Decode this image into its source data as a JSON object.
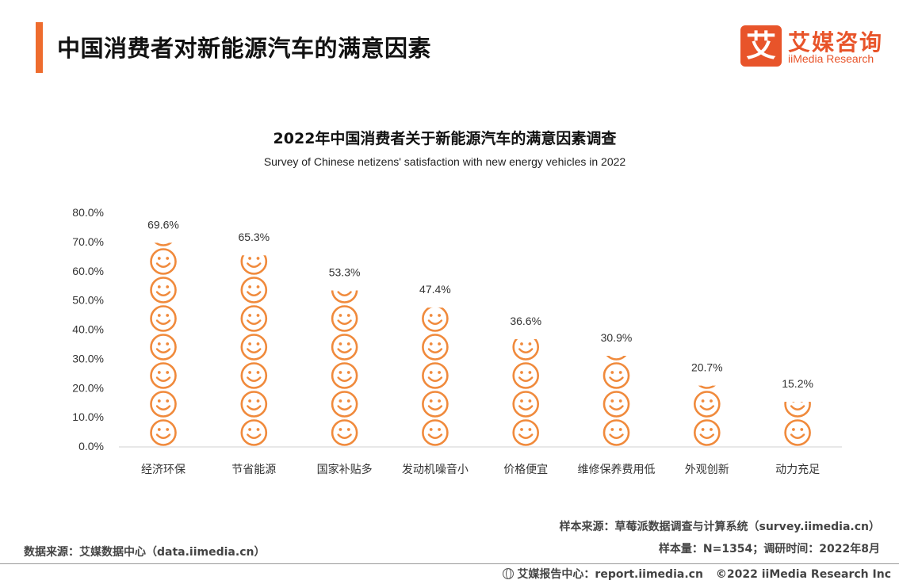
{
  "header": {
    "title": "中国消费者对新能源汽车的满意因素",
    "accent_color": "#ee6c2e"
  },
  "logo": {
    "mark": "艾",
    "name_cn": "艾媒咨询",
    "name_en": "iiMedia Research",
    "color": "#e8542a"
  },
  "chart_data": {
    "type": "bar",
    "title": "2022年中国消费者关于新能源汽车的满意因素调查",
    "subtitle": "Survey of Chinese netizens' satisfaction with new energy vehicles in 2022",
    "categories": [
      "经济环保",
      "节省能源",
      "国家补贴多",
      "发动机噪音小",
      "价格便宜",
      "维修保养费用低",
      "外观创新",
      "动力充足"
    ],
    "values": [
      69.6,
      65.3,
      53.3,
      47.4,
      36.6,
      30.9,
      20.7,
      15.2
    ],
    "value_labels": [
      "69.6%",
      "65.3%",
      "53.3%",
      "47.4%",
      "36.6%",
      "30.9%",
      "20.7%",
      "15.2%"
    ],
    "ylim": [
      0,
      80
    ],
    "yticks": [
      "0.0%",
      "10.0%",
      "20.0%",
      "30.0%",
      "40.0%",
      "50.0%",
      "60.0%",
      "70.0%",
      "80.0%"
    ],
    "mark_style": "stacked smiley icons",
    "bar_color": "#f08a3c",
    "grid": false,
    "legend": "none"
  },
  "notes": {
    "sample_source": "样本来源：草莓派数据调查与计算系统（survey.iimedia.cn）",
    "sample_size": "样本量：N=1354；调研时间：2022年8月",
    "data_source": "数据来源：艾媒数据中心（data.iimedia.cn）"
  },
  "footer": {
    "report_center": "艾媒报告中心：report.iimedia.cn",
    "copyright": "©2022  iiMedia Research  Inc"
  }
}
